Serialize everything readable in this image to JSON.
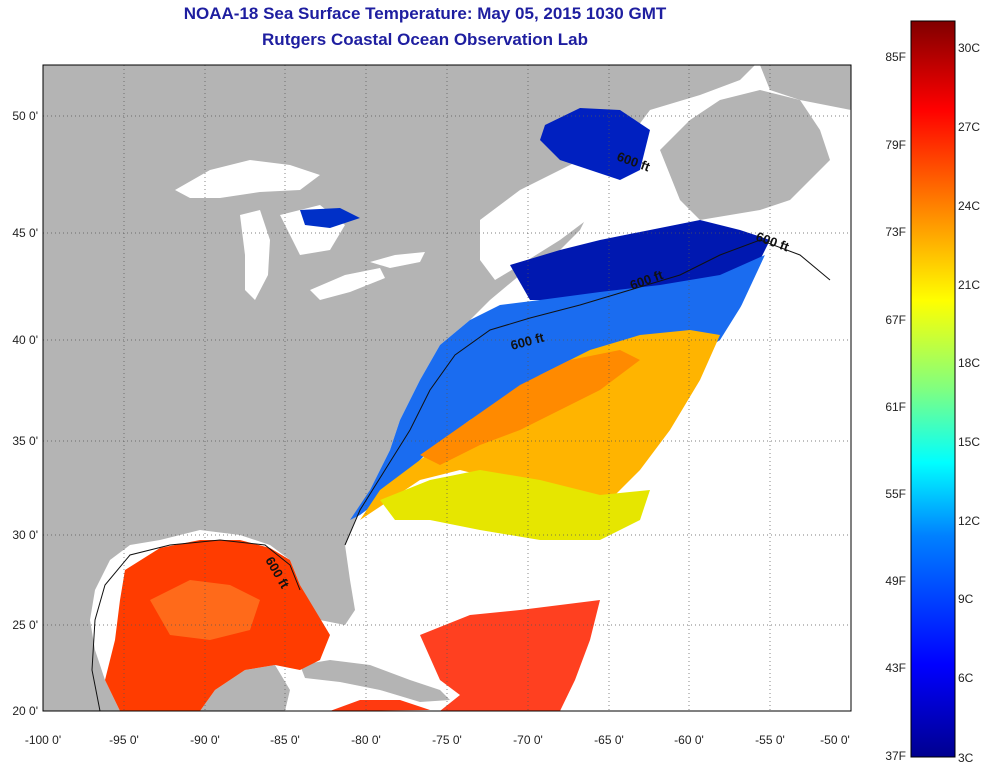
{
  "title": "NOAA-18 Sea Surface Temperature:  May 05, 2015 1030 GMT",
  "subtitle": "Rutgers Coastal Ocean Observation Lab",
  "axes": {
    "lon_labels": [
      "-100 0'",
      "-95 0'",
      "-90 0'",
      "-85 0'",
      "-80 0'",
      "-75 0'",
      "-70 0'",
      "-65 0'",
      "-60 0'",
      "-55 0'",
      "-50 0'"
    ],
    "lat_labels": [
      "50 0'",
      "45 0'",
      "40 0'",
      "35 0'",
      "30 0'",
      "25 0'",
      "20 0'"
    ]
  },
  "contour_label": "600 ft",
  "colorbar": {
    "fahrenheit": [
      "85F",
      "79F",
      "73F",
      "67F",
      "61F",
      "55F",
      "49F",
      "43F",
      "37F"
    ],
    "celsius": [
      "30C",
      "27C",
      "24C",
      "21C",
      "18C",
      "15C",
      "12C",
      "9C",
      "6C",
      "3C"
    ],
    "colors": [
      "#00008f",
      "#0000ff",
      "#0080ff",
      "#00ffff",
      "#80ff80",
      "#ffff00",
      "#ff8000",
      "#ff0000",
      "#800000"
    ]
  },
  "colors": {
    "land": "#b4b4b4",
    "title": "#1e1ea0"
  }
}
